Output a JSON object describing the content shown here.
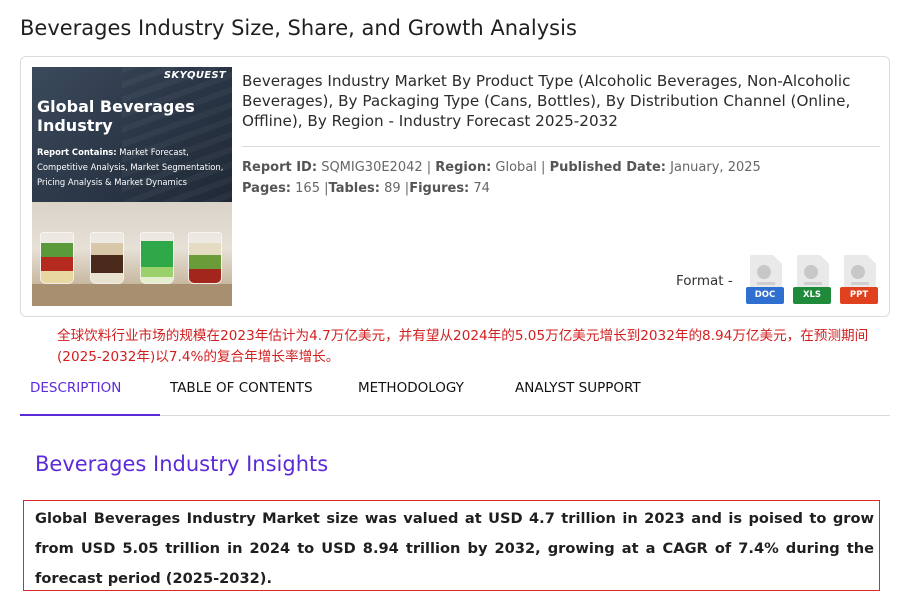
{
  "page": {
    "title": "Beverages Industry Size, Share, and Growth Analysis"
  },
  "cover": {
    "brand": "SKYQUEST",
    "heading": "Global Beverages Industry",
    "contains_label": "Report Contains:",
    "contains_text": "Market Forecast, Competitive Analysis, Market Segmentation, Pricing Analysis & Market Dynamics"
  },
  "report": {
    "name": "Beverages Industry Market By Product Type (Alcoholic Beverages, Non-Alcoholic Beverages), By Packaging Type (Cans, Bottles), By Distribution Channel (Online, Offline), By Region - Industry Forecast 2025-2032",
    "report_id_label": "Report ID:",
    "report_id": "SQMIG30E2042",
    "region_label": "Region:",
    "region": "Global",
    "published_label": "Published Date:",
    "published": "January, 2025",
    "pages_label": "Pages:",
    "pages": "165",
    "tables_label": "Tables:",
    "tables": "89",
    "figures_label": "Figures:",
    "figures": "74",
    "sep": " | ",
    "sep_tight": " |"
  },
  "formats": {
    "label": "Format -",
    "doc": "DOC",
    "xls": "XLS",
    "ppt": "PPT"
  },
  "cn_summary": "全球饮料行业市场的规模在2023年估计为4.7万亿美元，并有望从2024年的5.05万亿美元增长到2032年的8.94万亿美元，在预测期间(2025-2032年)以7.4%的复合年增长率增长。",
  "tabs": [
    {
      "label": "DESCRIPTION"
    },
    {
      "label": "TABLE OF CONTENTS"
    },
    {
      "label": "METHODOLOGY"
    },
    {
      "label": "ANALYST SUPPORT"
    }
  ],
  "insights": {
    "title": "Beverages Industry Insights",
    "highlight": "Global Beverages Industry Market size was valued at USD 4.7 trillion in 2023 and is poised to grow from USD 5.05 trillion in 2024 to USD 8.94 trillion by 2032, growing at a CAGR of 7.4% during the forecast period (2025-2032)."
  },
  "colors": {
    "accent": "#5b2bd9",
    "cn_text": "#d21f1f",
    "box_border": "#d62b2b",
    "doc": "#2f6fd0",
    "xls": "#1e8a3a",
    "ppt": "#e0411f"
  }
}
